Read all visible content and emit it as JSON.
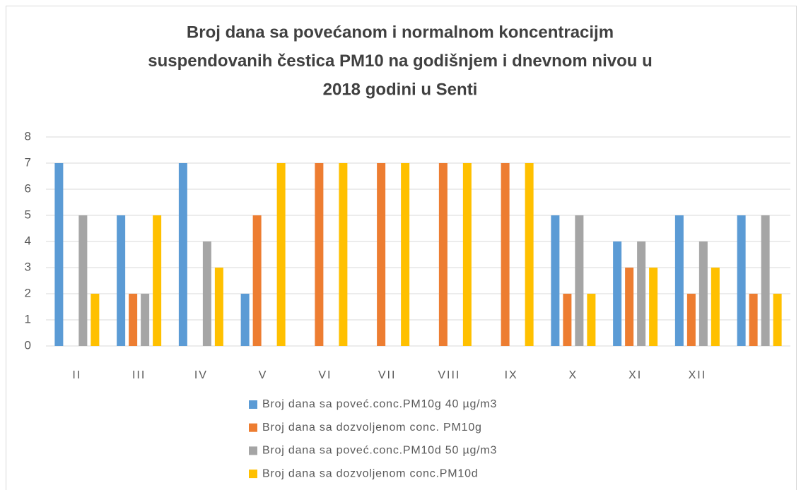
{
  "chart_data": {
    "type": "bar",
    "title": [
      "Broj dana sa povećanom i normalnom koncentracijm",
      "suspendovanih čestica PM10 na godišnjem i dnevnom nivou u",
      "2018 godini u Senti"
    ],
    "categories": [
      "II",
      "III",
      "IV",
      "V",
      "VI",
      "VII",
      "VIII",
      "IX",
      "X",
      "XI",
      "XII",
      null
    ],
    "series": [
      {
        "name": "Broj dana sa poveć.conc.PM10g 40 µg/m3",
        "color": "#5b9bd5",
        "values": [
          7,
          5,
          7,
          2,
          0,
          0,
          0,
          0,
          5,
          4,
          5,
          5
        ]
      },
      {
        "name": "Broj dana sa dozvoljenom conc. PM10g",
        "color": "#ed7d31",
        "values": [
          0,
          2,
          0,
          5,
          7,
          7,
          7,
          7,
          2,
          3,
          2,
          2
        ]
      },
      {
        "name": "Broj dana sa poveć.conc.PM10d 50 µg/m3",
        "color": "#a5a5a5",
        "values": [
          5,
          2,
          4,
          0,
          0,
          0,
          0,
          0,
          5,
          4,
          4,
          5
        ]
      },
      {
        "name": "Broj dana sa dozvoljenom conc.PM10d",
        "color": "#ffc000",
        "values": [
          2,
          5,
          3,
          7,
          7,
          7,
          7,
          7,
          2,
          3,
          3,
          2
        ]
      }
    ],
    "ylim": [
      0,
      8
    ],
    "yticks": [
      0,
      1,
      2,
      3,
      4,
      5,
      6,
      7,
      8
    ],
    "grid": true,
    "legend": "bottom"
  }
}
